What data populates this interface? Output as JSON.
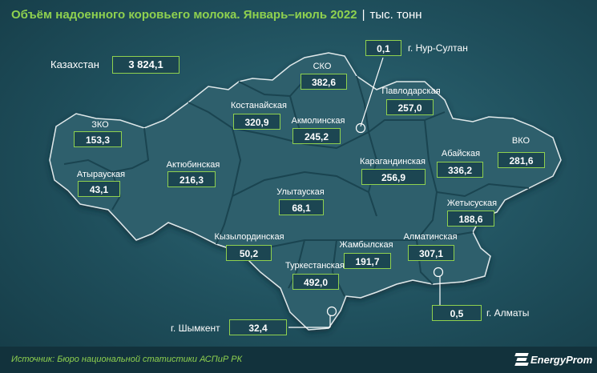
{
  "header": {
    "title": "Объём надоенного коровьего молока. Январь–июль 2022",
    "separator": "|",
    "unit": "тыс. тонн"
  },
  "total": {
    "label": "Казахстан",
    "value": "3 824,1"
  },
  "regions": [
    {
      "id": "zko",
      "label": "ЗКО",
      "value": "153,3"
    },
    {
      "id": "atyrau",
      "label": "Атырауская",
      "value": "43,1"
    },
    {
      "id": "aktobe",
      "label": "Актюбинская",
      "value": "216,3"
    },
    {
      "id": "kostanay",
      "label": "Костанайская",
      "value": "320,9"
    },
    {
      "id": "sko",
      "label": "СКО",
      "value": "382,6"
    },
    {
      "id": "akmola",
      "label": "Акмолинская",
      "value": "245,2"
    },
    {
      "id": "pavlodar",
      "label": "Павлодарская",
      "value": "257,0"
    },
    {
      "id": "karaganda",
      "label": "Карагандинская",
      "value": "256,9"
    },
    {
      "id": "abay",
      "label": "Абайская",
      "value": "336,2"
    },
    {
      "id": "vko",
      "label": "ВКО",
      "value": "281,6"
    },
    {
      "id": "ulytau",
      "label": "Улытауская",
      "value": "68,1"
    },
    {
      "id": "zhetysu",
      "label": "Жетысуская",
      "value": "188,6"
    },
    {
      "id": "kyzylorda",
      "label": "Кызылординская",
      "value": "50,2"
    },
    {
      "id": "zhambyl",
      "label": "Жамбылская",
      "value": "191,7"
    },
    {
      "id": "almaty-reg",
      "label": "Алматинская",
      "value": "307,1"
    },
    {
      "id": "turkestan",
      "label": "Туркестанская",
      "value": "492,0"
    }
  ],
  "cities": [
    {
      "id": "nur-sultan",
      "label": "г. Нур-Султан",
      "value": "0,1"
    },
    {
      "id": "almaty",
      "label": "г. Алматы",
      "value": "0,5"
    },
    {
      "id": "shymkent",
      "label": "г. Шымкент",
      "value": "32,4"
    }
  ],
  "footer": {
    "source": "Источник: Бюро национальной статистики АСПиР РК",
    "logo": "EnergyProm"
  },
  "colors": {
    "accent": "#8fd14f",
    "map_fill": "#2d5e6c",
    "border": "#1a4450"
  }
}
